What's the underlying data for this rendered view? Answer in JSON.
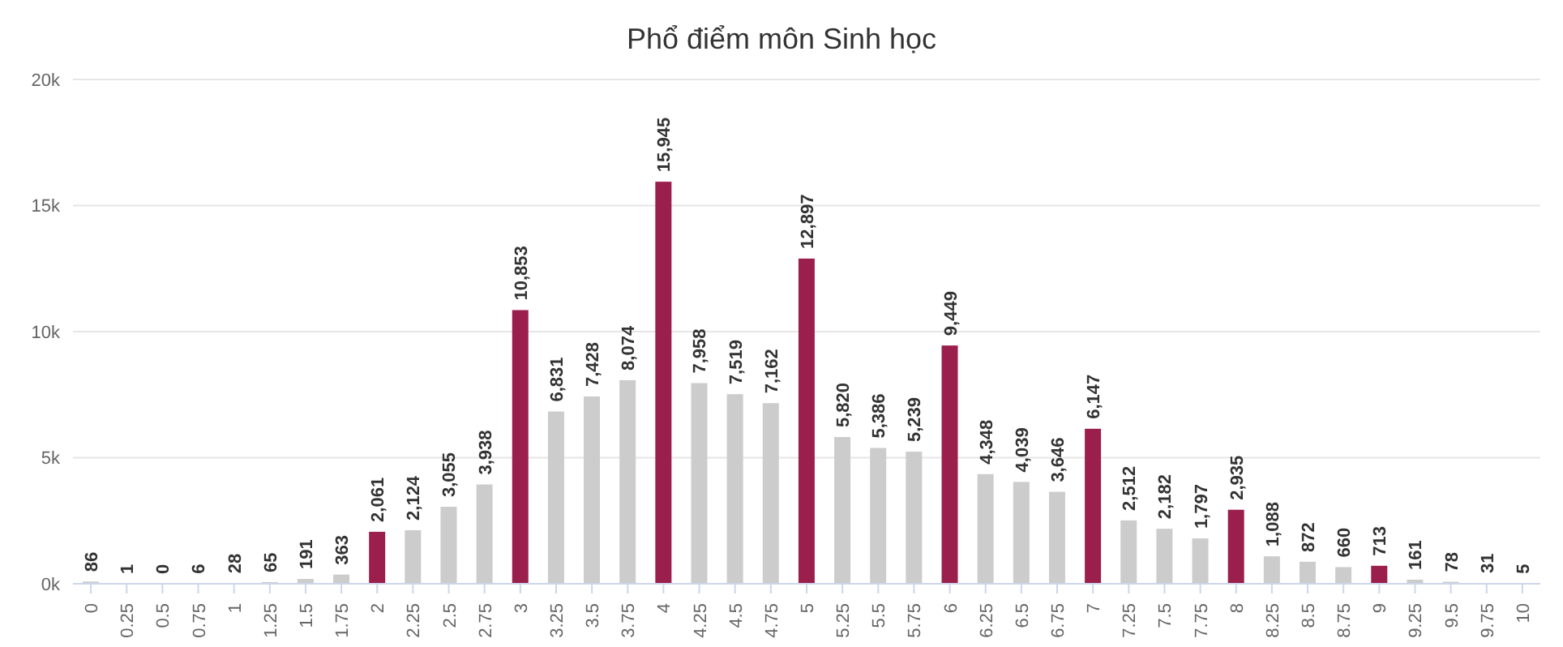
{
  "chart_data": {
    "type": "bar",
    "title": "Phổ điểm môn Sinh học",
    "categories": [
      "0",
      "0.25",
      "0.5",
      "0.75",
      "1",
      "1.25",
      "1.5",
      "1.75",
      "2",
      "2.25",
      "2.5",
      "2.75",
      "3",
      "3.25",
      "3.5",
      "3.75",
      "4",
      "4.25",
      "4.5",
      "4.75",
      "5",
      "5.25",
      "5.5",
      "5.75",
      "6",
      "6.25",
      "6.5",
      "6.75",
      "7",
      "7.25",
      "7.5",
      "7.75",
      "8",
      "8.25",
      "8.5",
      "8.75",
      "9",
      "9.25",
      "9.5",
      "9.75",
      "10"
    ],
    "values": [
      86,
      1,
      0,
      6,
      28,
      65,
      191,
      363,
      2061,
      2124,
      3055,
      3938,
      10853,
      6831,
      7428,
      8074,
      15945,
      7958,
      7519,
      7162,
      12897,
      5820,
      5386,
      5239,
      9449,
      4348,
      4039,
      3646,
      6147,
      2512,
      2182,
      1797,
      2935,
      1088,
      872,
      660,
      713,
      161,
      78,
      31,
      5
    ],
    "value_labels": [
      "86",
      "1",
      "0",
      "6",
      "28",
      "65",
      "191",
      "363",
      "2,061",
      "2,124",
      "3,055",
      "3,938",
      "10,853",
      "6,831",
      "7,428",
      "8,074",
      "15,945",
      "7,958",
      "7,519",
      "7,162",
      "12,897",
      "5,820",
      "5,386",
      "5,239",
      "9,449",
      "4,348",
      "4,039",
      "3,646",
      "6,147",
      "2,512",
      "2,182",
      "1,797",
      "2,935",
      "1,088",
      "872",
      "660",
      "713",
      "161",
      "78",
      "31",
      "5"
    ],
    "colors": [
      "#cccccc",
      "#cccccc",
      "#cccccc",
      "#cccccc",
      "#9b1f4c",
      "#cccccc",
      "#cccccc",
      "#cccccc",
      "#9b1f4c",
      "#cccccc",
      "#cccccc",
      "#cccccc",
      "#9b1f4c",
      "#cccccc",
      "#cccccc",
      "#cccccc",
      "#9b1f4c",
      "#cccccc",
      "#cccccc",
      "#cccccc",
      "#9b1f4c",
      "#cccccc",
      "#cccccc",
      "#cccccc",
      "#9b1f4c",
      "#cccccc",
      "#cccccc",
      "#cccccc",
      "#9b1f4c",
      "#cccccc",
      "#cccccc",
      "#cccccc",
      "#9b1f4c",
      "#cccccc",
      "#cccccc",
      "#cccccc",
      "#9b1f4c",
      "#cccccc",
      "#cccccc",
      "#cccccc",
      "#9b1f4c"
    ],
    "ylim": [
      0,
      20000
    ],
    "yticks": [
      {
        "value": 0,
        "label": "0k"
      },
      {
        "value": 5000,
        "label": "5k"
      },
      {
        "value": 10000,
        "label": "10k"
      },
      {
        "value": 15000,
        "label": "15k"
      },
      {
        "value": 20000,
        "label": "20k"
      }
    ],
    "grid": "y",
    "legend": false
  }
}
